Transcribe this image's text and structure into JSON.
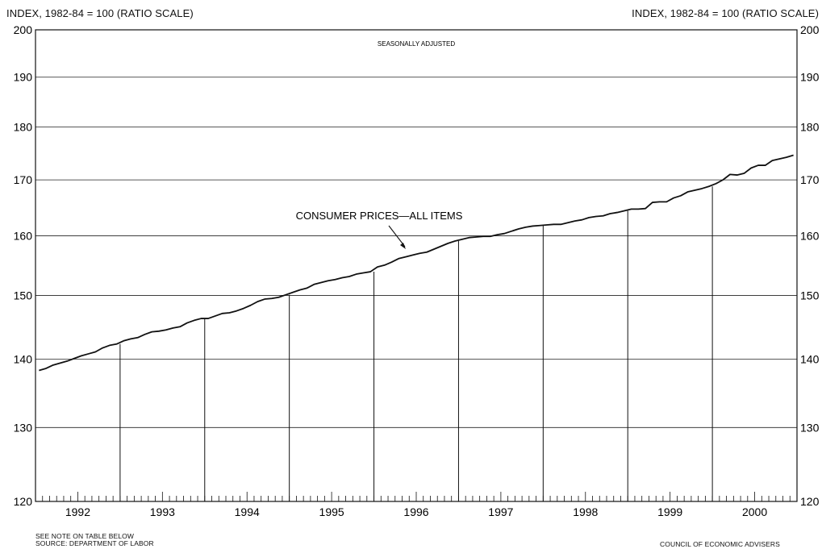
{
  "header": {
    "left_label": "INDEX, 1982-84 = 100 (RATIO SCALE)",
    "right_label": "INDEX, 1982-84 = 100 (RATIO SCALE)"
  },
  "footer": {
    "note": "SEE NOTE ON TABLE BELOW",
    "source": "SOURCE: DEPARTMENT OF LABOR",
    "agency": "COUNCIL OF ECONOMIC ADVISERS"
  },
  "chart_data": {
    "type": "line",
    "title": "",
    "subtitle": "SEASONALLY ADJUSTED",
    "xlabel": "",
    "ylabel": "INDEX, 1982-84 = 100 (RATIO SCALE)",
    "y_scale": "log",
    "ylim": [
      120,
      200
    ],
    "y_ticks": [
      120,
      130,
      140,
      150,
      160,
      170,
      180,
      190,
      200
    ],
    "x_range": [
      "1992-01",
      "2000-12"
    ],
    "x_ticks": [
      "1992",
      "1993",
      "1994",
      "1995",
      "1996",
      "1997",
      "1998",
      "1999",
      "2000"
    ],
    "grid": true,
    "annotation": "CONSUMER PRICES—ALL ITEMS",
    "series": [
      {
        "name": "CONSUMER PRICES—ALL ITEMS",
        "x": [
          "1992-01",
          "1992-02",
          "1992-03",
          "1992-04",
          "1992-05",
          "1992-06",
          "1992-07",
          "1992-08",
          "1992-09",
          "1992-10",
          "1992-11",
          "1992-12",
          "1993-01",
          "1993-02",
          "1993-03",
          "1993-04",
          "1993-05",
          "1993-06",
          "1993-07",
          "1993-08",
          "1993-09",
          "1993-10",
          "1993-11",
          "1993-12",
          "1994-01",
          "1994-02",
          "1994-03",
          "1994-04",
          "1994-05",
          "1994-06",
          "1994-07",
          "1994-08",
          "1994-09",
          "1994-10",
          "1994-11",
          "1994-12",
          "1995-01",
          "1995-02",
          "1995-03",
          "1995-04",
          "1995-05",
          "1995-06",
          "1995-07",
          "1995-08",
          "1995-09",
          "1995-10",
          "1995-11",
          "1995-12",
          "1996-01",
          "1996-02",
          "1996-03",
          "1996-04",
          "1996-05",
          "1996-06",
          "1996-07",
          "1996-08",
          "1996-09",
          "1996-10",
          "1996-11",
          "1996-12",
          "1997-01",
          "1997-02",
          "1997-03",
          "1997-04",
          "1997-05",
          "1997-06",
          "1997-07",
          "1997-08",
          "1997-09",
          "1997-10",
          "1997-11",
          "1997-12",
          "1998-01",
          "1998-02",
          "1998-03",
          "1998-04",
          "1998-05",
          "1998-06",
          "1998-07",
          "1998-08",
          "1998-09",
          "1998-10",
          "1998-11",
          "1998-12",
          "1999-01",
          "1999-02",
          "1999-03",
          "1999-04",
          "1999-05",
          "1999-06",
          "1999-07",
          "1999-08",
          "1999-09",
          "1999-10",
          "1999-11",
          "1999-12",
          "2000-01",
          "2000-02",
          "2000-03",
          "2000-04",
          "2000-05",
          "2000-06",
          "2000-07",
          "2000-08",
          "2000-09",
          "2000-10",
          "2000-11",
          "2000-12"
        ],
        "values": [
          138.3,
          138.6,
          139.1,
          139.4,
          139.7,
          140.1,
          140.5,
          140.8,
          141.1,
          141.7,
          142.1,
          142.3,
          142.8,
          143.1,
          143.3,
          143.8,
          144.2,
          144.3,
          144.5,
          144.8,
          145.0,
          145.6,
          146.0,
          146.3,
          146.3,
          146.7,
          147.1,
          147.2,
          147.5,
          147.9,
          148.4,
          149.0,
          149.4,
          149.5,
          149.7,
          150.1,
          150.5,
          150.9,
          151.2,
          151.8,
          152.1,
          152.4,
          152.6,
          152.9,
          153.1,
          153.5,
          153.7,
          153.9,
          154.7,
          155.0,
          155.5,
          156.1,
          156.4,
          156.7,
          157.0,
          157.2,
          157.7,
          158.2,
          158.7,
          159.1,
          159.4,
          159.7,
          159.8,
          159.9,
          159.9,
          160.2,
          160.4,
          160.8,
          161.2,
          161.5,
          161.7,
          161.8,
          161.9,
          162.0,
          162.0,
          162.3,
          162.6,
          162.8,
          163.2,
          163.4,
          163.5,
          163.9,
          164.1,
          164.4,
          164.7,
          164.7,
          164.8,
          165.9,
          166.0,
          166.0,
          166.7,
          167.1,
          167.8,
          168.1,
          168.4,
          168.8,
          169.3,
          170.0,
          171.0,
          170.9,
          171.2,
          172.2,
          172.7,
          172.7,
          173.6,
          173.9,
          174.2,
          174.6
        ]
      }
    ]
  }
}
